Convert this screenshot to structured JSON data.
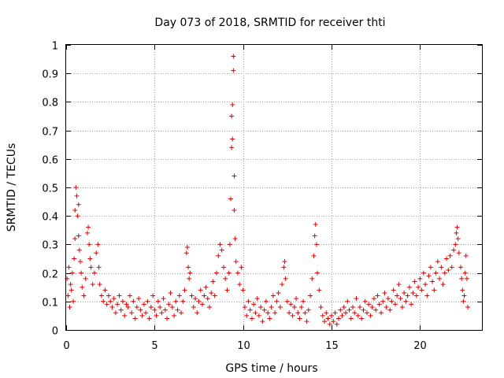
{
  "chart_data": {
    "type": "scatter",
    "title": "Day 073 of 2018, SRMTID for receiver thti",
    "xlabel": "GPS time / hours",
    "ylabel": "SRMTID / TECUs",
    "xlim": [
      0,
      23.5
    ],
    "ylim": [
      0,
      1
    ],
    "xticks": [
      0,
      5,
      10,
      15,
      20
    ],
    "xtick_labels": [
      "0",
      "5",
      "10",
      "15",
      "20"
    ],
    "yticks": [
      0,
      0.1,
      0.2,
      0.3,
      0.4,
      0.5,
      0.6,
      0.7,
      0.8,
      0.9,
      1
    ],
    "ytick_labels": [
      "0",
      "0.1",
      "0.2",
      "0.3",
      "0.4",
      "0.5",
      "0.6",
      "0.7",
      "0.8",
      "0.9",
      "1"
    ],
    "grid": true,
    "marker": "+",
    "color": "#e00000",
    "series": [
      {
        "name": "SRMTID",
        "points": [
          [
            0.05,
            0.18
          ],
          [
            0.1,
            0.12
          ],
          [
            0.15,
            0.22
          ],
          [
            0.2,
            0.08
          ],
          [
            0.25,
            0.16
          ],
          [
            0.3,
            0.14
          ],
          [
            0.35,
            0.2
          ],
          [
            0.4,
            0.1
          ],
          [
            0.45,
            0.25
          ],
          [
            0.5,
            0.32
          ],
          [
            0.5,
            0.42
          ],
          [
            0.55,
            0.5
          ],
          [
            0.6,
            0.47
          ],
          [
            0.65,
            0.4
          ],
          [
            0.7,
            0.44
          ],
          [
            0.7,
            0.33
          ],
          [
            0.75,
            0.28
          ],
          [
            0.8,
            0.24
          ],
          [
            0.85,
            0.2
          ],
          [
            0.9,
            0.15
          ],
          [
            1.0,
            0.12
          ],
          [
            1.1,
            0.18
          ],
          [
            1.2,
            0.34
          ],
          [
            1.25,
            0.36
          ],
          [
            1.3,
            0.3
          ],
          [
            1.35,
            0.25
          ],
          [
            1.4,
            0.22
          ],
          [
            1.5,
            0.16
          ],
          [
            1.6,
            0.2
          ],
          [
            1.7,
            0.27
          ],
          [
            1.8,
            0.3
          ],
          [
            1.85,
            0.22
          ],
          [
            1.9,
            0.16
          ],
          [
            2.0,
            0.12
          ],
          [
            2.1,
            0.1
          ],
          [
            2.2,
            0.14
          ],
          [
            2.3,
            0.09
          ],
          [
            2.4,
            0.12
          ],
          [
            2.5,
            0.1
          ],
          [
            2.6,
            0.08
          ],
          [
            2.7,
            0.11
          ],
          [
            2.8,
            0.06
          ],
          [
            2.9,
            0.09
          ],
          [
            3.0,
            0.12
          ],
          [
            3.1,
            0.07
          ],
          [
            3.2,
            0.1
          ],
          [
            3.3,
            0.05
          ],
          [
            3.4,
            0.09
          ],
          [
            3.5,
            0.08
          ],
          [
            3.6,
            0.12
          ],
          [
            3.7,
            0.06
          ],
          [
            3.8,
            0.1
          ],
          [
            3.9,
            0.04
          ],
          [
            4.0,
            0.08
          ],
          [
            4.1,
            0.11
          ],
          [
            4.2,
            0.07
          ],
          [
            4.3,
            0.05
          ],
          [
            4.4,
            0.09
          ],
          [
            4.5,
            0.06
          ],
          [
            4.6,
            0.1
          ],
          [
            4.7,
            0.04
          ],
          [
            4.8,
            0.08
          ],
          [
            4.9,
            0.12
          ],
          [
            5.0,
            0.07
          ],
          [
            5.1,
            0.05
          ],
          [
            5.2,
            0.1
          ],
          [
            5.3,
            0.08
          ],
          [
            5.4,
            0.06
          ],
          [
            5.5,
            0.11
          ],
          [
            5.6,
            0.07
          ],
          [
            5.7,
            0.04
          ],
          [
            5.8,
            0.09
          ],
          [
            5.9,
            0.13
          ],
          [
            6.0,
            0.08
          ],
          [
            6.1,
            0.05
          ],
          [
            6.2,
            0.1
          ],
          [
            6.3,
            0.07
          ],
          [
            6.4,
            0.12
          ],
          [
            6.5,
            0.06
          ],
          [
            6.6,
            0.1
          ],
          [
            6.7,
            0.14
          ],
          [
            6.8,
            0.27
          ],
          [
            6.85,
            0.29
          ],
          [
            6.9,
            0.22
          ],
          [
            6.95,
            0.18
          ],
          [
            7.0,
            0.2
          ],
          [
            7.1,
            0.12
          ],
          [
            7.2,
            0.08
          ],
          [
            7.3,
            0.11
          ],
          [
            7.4,
            0.06
          ],
          [
            7.5,
            0.1
          ],
          [
            7.6,
            0.14
          ],
          [
            7.7,
            0.09
          ],
          [
            7.8,
            0.12
          ],
          [
            7.9,
            0.15
          ],
          [
            8.0,
            0.11
          ],
          [
            8.1,
            0.08
          ],
          [
            8.2,
            0.13
          ],
          [
            8.3,
            0.17
          ],
          [
            8.4,
            0.12
          ],
          [
            8.5,
            0.2
          ],
          [
            8.6,
            0.26
          ],
          [
            8.7,
            0.3
          ],
          [
            8.8,
            0.28
          ],
          [
            8.9,
            0.22
          ],
          [
            9.0,
            0.18
          ],
          [
            9.1,
            0.14
          ],
          [
            9.2,
            0.2
          ],
          [
            9.25,
            0.3
          ],
          [
            9.3,
            0.46
          ],
          [
            9.35,
            0.64
          ],
          [
            9.35,
            0.75
          ],
          [
            9.4,
            0.79
          ],
          [
            9.4,
            0.67
          ],
          [
            9.45,
            0.91
          ],
          [
            9.45,
            0.96
          ],
          [
            9.5,
            0.54
          ],
          [
            9.5,
            0.42
          ],
          [
            9.55,
            0.32
          ],
          [
            9.6,
            0.24
          ],
          [
            9.7,
            0.2
          ],
          [
            9.8,
            0.16
          ],
          [
            9.9,
            0.22
          ],
          [
            10.0,
            0.14
          ],
          [
            10.1,
            0.08
          ],
          [
            10.2,
            0.05
          ],
          [
            10.3,
            0.1
          ],
          [
            10.4,
            0.07
          ],
          [
            10.5,
            0.04
          ],
          [
            10.6,
            0.09
          ],
          [
            10.7,
            0.06
          ],
          [
            10.8,
            0.11
          ],
          [
            10.9,
            0.05
          ],
          [
            11.0,
            0.08
          ],
          [
            11.1,
            0.03
          ],
          [
            11.2,
            0.07
          ],
          [
            11.3,
            0.1
          ],
          [
            11.4,
            0.06
          ],
          [
            11.5,
            0.04
          ],
          [
            11.6,
            0.08
          ],
          [
            11.7,
            0.12
          ],
          [
            11.8,
            0.06
          ],
          [
            11.9,
            0.1
          ],
          [
            12.0,
            0.13
          ],
          [
            12.1,
            0.08
          ],
          [
            12.2,
            0.16
          ],
          [
            12.3,
            0.22
          ],
          [
            12.35,
            0.24
          ],
          [
            12.4,
            0.18
          ],
          [
            12.5,
            0.1
          ],
          [
            12.6,
            0.06
          ],
          [
            12.7,
            0.09
          ],
          [
            12.8,
            0.05
          ],
          [
            12.9,
            0.08
          ],
          [
            13.0,
            0.11
          ],
          [
            13.1,
            0.06
          ],
          [
            13.2,
            0.04
          ],
          [
            13.3,
            0.08
          ],
          [
            13.4,
            0.1
          ],
          [
            13.5,
            0.06
          ],
          [
            13.6,
            0.03
          ],
          [
            13.7,
            0.07
          ],
          [
            13.8,
            0.12
          ],
          [
            13.9,
            0.18
          ],
          [
            14.0,
            0.26
          ],
          [
            14.05,
            0.33
          ],
          [
            14.1,
            0.37
          ],
          [
            14.15,
            0.3
          ],
          [
            14.2,
            0.2
          ],
          [
            14.3,
            0.14
          ],
          [
            14.4,
            0.08
          ],
          [
            14.5,
            0.05
          ],
          [
            14.6,
            0.03
          ],
          [
            14.7,
            0.06
          ],
          [
            14.8,
            0.04
          ],
          [
            14.9,
            0.02
          ],
          [
            15.0,
            0.05
          ],
          [
            15.1,
            0.03
          ],
          [
            15.2,
            0.06
          ],
          [
            15.3,
            0.02
          ],
          [
            15.4,
            0.04
          ],
          [
            15.5,
            0.07
          ],
          [
            15.6,
            0.05
          ],
          [
            15.7,
            0.08
          ],
          [
            15.8,
            0.06
          ],
          [
            15.9,
            0.1
          ],
          [
            16.0,
            0.07
          ],
          [
            16.1,
            0.04
          ],
          [
            16.2,
            0.08
          ],
          [
            16.3,
            0.06
          ],
          [
            16.4,
            0.11
          ],
          [
            16.5,
            0.05
          ],
          [
            16.6,
            0.08
          ],
          [
            16.7,
            0.04
          ],
          [
            16.8,
            0.07
          ],
          [
            16.9,
            0.1
          ],
          [
            17.0,
            0.06
          ],
          [
            17.1,
            0.09
          ],
          [
            17.2,
            0.05
          ],
          [
            17.3,
            0.08
          ],
          [
            17.4,
            0.11
          ],
          [
            17.5,
            0.07
          ],
          [
            17.6,
            0.12
          ],
          [
            17.7,
            0.09
          ],
          [
            17.8,
            0.06
          ],
          [
            17.9,
            0.1
          ],
          [
            18.0,
            0.13
          ],
          [
            18.1,
            0.08
          ],
          [
            18.2,
            0.11
          ],
          [
            18.3,
            0.07
          ],
          [
            18.4,
            0.1
          ],
          [
            18.5,
            0.14
          ],
          [
            18.6,
            0.09
          ],
          [
            18.7,
            0.12
          ],
          [
            18.8,
            0.16
          ],
          [
            18.9,
            0.11
          ],
          [
            19.0,
            0.08
          ],
          [
            19.1,
            0.13
          ],
          [
            19.2,
            0.1
          ],
          [
            19.3,
            0.12
          ],
          [
            19.4,
            0.15
          ],
          [
            19.5,
            0.09
          ],
          [
            19.6,
            0.13
          ],
          [
            19.7,
            0.17
          ],
          [
            19.8,
            0.12
          ],
          [
            19.9,
            0.15
          ],
          [
            20.0,
            0.18
          ],
          [
            20.1,
            0.14
          ],
          [
            20.2,
            0.2
          ],
          [
            20.3,
            0.16
          ],
          [
            20.4,
            0.12
          ],
          [
            20.5,
            0.19
          ],
          [
            20.6,
            0.22
          ],
          [
            20.7,
            0.17
          ],
          [
            20.8,
            0.14
          ],
          [
            20.9,
            0.2
          ],
          [
            21.0,
            0.24
          ],
          [
            21.1,
            0.18
          ],
          [
            21.2,
            0.22
          ],
          [
            21.3,
            0.16
          ],
          [
            21.4,
            0.2
          ],
          [
            21.5,
            0.25
          ],
          [
            21.6,
            0.21
          ],
          [
            21.7,
            0.26
          ],
          [
            21.8,
            0.22
          ],
          [
            21.9,
            0.28
          ],
          [
            22.0,
            0.3
          ],
          [
            22.05,
            0.34
          ],
          [
            22.1,
            0.36
          ],
          [
            22.15,
            0.32
          ],
          [
            22.2,
            0.27
          ],
          [
            22.3,
            0.22
          ],
          [
            22.35,
            0.18
          ],
          [
            22.4,
            0.14
          ],
          [
            22.45,
            0.1
          ],
          [
            22.5,
            0.12
          ],
          [
            22.55,
            0.2
          ],
          [
            22.6,
            0.26
          ],
          [
            22.65,
            0.18
          ],
          [
            22.7,
            0.08
          ]
        ]
      }
    ]
  }
}
